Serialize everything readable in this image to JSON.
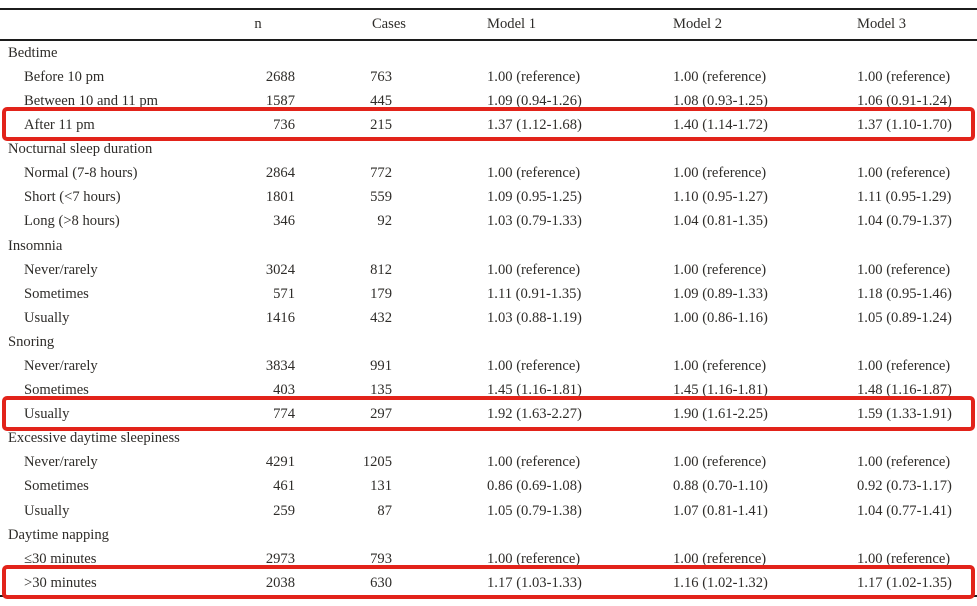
{
  "style": {
    "highlight_color": "#e2231a",
    "text_color": "#2e2c29"
  },
  "table": {
    "header": {
      "label": "",
      "n": "n",
      "cases": "Cases",
      "model1": "Model 1",
      "model2": "Model 2",
      "model3": "Model 3"
    },
    "rows": [
      {
        "type": "section",
        "label": "Bedtime"
      },
      {
        "type": "item",
        "label": "Before 10 pm",
        "n": "2688",
        "cases": "763",
        "m1": "1.00 (reference)",
        "m2": "1.00 (reference)",
        "m3": "1.00 (reference)"
      },
      {
        "type": "item",
        "label": "Between 10 and 11 pm",
        "n": "1587",
        "cases": "445",
        "m1": "1.09 (0.94-1.26)",
        "m2": "1.08 (0.93-1.25)",
        "m3": "1.06 (0.91-1.24)"
      },
      {
        "type": "item",
        "highlight": true,
        "label": "After 11 pm",
        "n": "736",
        "cases": "215",
        "m1": "1.37 (1.12-1.68)",
        "m2": "1.40 (1.14-1.72)",
        "m3": "1.37 (1.10-1.70)"
      },
      {
        "type": "section",
        "label": "Nocturnal sleep duration"
      },
      {
        "type": "item",
        "label": "Normal (7-8 hours)",
        "n": "2864",
        "cases": "772",
        "m1": "1.00 (reference)",
        "m2": "1.00 (reference)",
        "m3": "1.00 (reference)"
      },
      {
        "type": "item",
        "label": "Short (<7 hours)",
        "n": "1801",
        "cases": "559",
        "m1": "1.09 (0.95-1.25)",
        "m2": "1.10 (0.95-1.27)",
        "m3": "1.11 (0.95-1.29)"
      },
      {
        "type": "item",
        "label": "Long (>8 hours)",
        "n": "346",
        "cases": "92",
        "m1": "1.03 (0.79-1.33)",
        "m2": "1.04 (0.81-1.35)",
        "m3": "1.04 (0.79-1.37)"
      },
      {
        "type": "section",
        "label": "Insomnia"
      },
      {
        "type": "item",
        "label": "Never/rarely",
        "n": "3024",
        "cases": "812",
        "m1": "1.00 (reference)",
        "m2": "1.00 (reference)",
        "m3": "1.00 (reference)"
      },
      {
        "type": "item",
        "label": "Sometimes",
        "n": "571",
        "cases": "179",
        "m1": "1.11 (0.91-1.35)",
        "m2": "1.09 (0.89-1.33)",
        "m3": "1.18 (0.95-1.46)"
      },
      {
        "type": "item",
        "label": "Usually",
        "n": "1416",
        "cases": "432",
        "m1": "1.03 (0.88-1.19)",
        "m2": "1.00 (0.86-1.16)",
        "m3": "1.05 (0.89-1.24)"
      },
      {
        "type": "section",
        "label": "Snoring"
      },
      {
        "type": "item",
        "label": "Never/rarely",
        "n": "3834",
        "cases": "991",
        "m1": "1.00 (reference)",
        "m2": "1.00 (reference)",
        "m3": "1.00 (reference)"
      },
      {
        "type": "item",
        "label": "Sometimes",
        "n": "403",
        "cases": "135",
        "m1": "1.45 (1.16-1.81)",
        "m2": "1.45 (1.16-1.81)",
        "m3": "1.48 (1.16-1.87)"
      },
      {
        "type": "item",
        "highlight": true,
        "label": "Usually",
        "n": "774",
        "cases": "297",
        "m1": "1.92 (1.63-2.27)",
        "m2": "1.90 (1.61-2.25)",
        "m3": "1.59 (1.33-1.91)"
      },
      {
        "type": "section",
        "label": "Excessive daytime sleepiness"
      },
      {
        "type": "item",
        "label": "Never/rarely",
        "n": "4291",
        "cases": "1205",
        "m1": "1.00 (reference)",
        "m2": "1.00 (reference)",
        "m3": "1.00 (reference)"
      },
      {
        "type": "item",
        "label": "Sometimes",
        "n": "461",
        "cases": "131",
        "m1": "0.86 (0.69-1.08)",
        "m2": "0.88 (0.70-1.10)",
        "m3": "0.92 (0.73-1.17)"
      },
      {
        "type": "item",
        "label": "Usually",
        "n": "259",
        "cases": "87",
        "m1": "1.05 (0.79-1.38)",
        "m2": "1.07 (0.81-1.41)",
        "m3": "1.04 (0.77-1.41)"
      },
      {
        "type": "section",
        "label": "Daytime napping"
      },
      {
        "type": "item",
        "label": "≤30 minutes",
        "n": "2973",
        "cases": "793",
        "m1": "1.00 (reference)",
        "m2": "1.00 (reference)",
        "m3": "1.00 (reference)"
      },
      {
        "type": "item",
        "highlight": true,
        "label": ">30 minutes",
        "n": "2038",
        "cases": "630",
        "m1": "1.17 (1.03-1.33)",
        "m2": "1.16 (1.02-1.32)",
        "m3": "1.17 (1.02-1.35)"
      }
    ]
  }
}
